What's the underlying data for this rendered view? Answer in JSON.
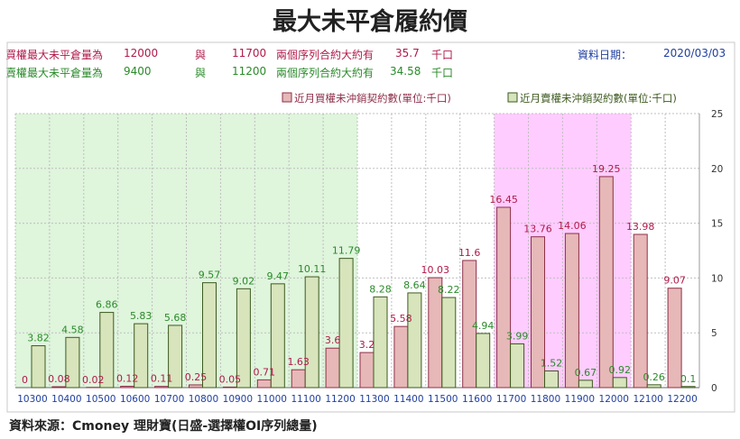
{
  "title": "最大未平倉履約價",
  "info": {
    "call_label": "買權最大未平倉量為",
    "call_val1": "12000",
    "and1": "與",
    "call_val2": "11700",
    "call_mid": "兩個序列合約大約有",
    "call_amount": "35.7",
    "call_unit": "千口",
    "put_label": "賣權最大未平倉量為",
    "put_val1": "9400",
    "and2": "與",
    "put_val2": "11200",
    "put_mid": "兩個序列合約大約有",
    "put_amount": "34.58",
    "put_unit": "千口",
    "date_label": "資料日期：",
    "date_value": "2020/03/03"
  },
  "colors": {
    "call_bar": "#e6b8b7",
    "call_edge": "#8e2f4a",
    "put_bar": "#d7e4bc",
    "put_edge": "#3d5a1f",
    "green_band": "#dff5dc",
    "pink_band": "#ffccff",
    "call_text": "#b01a4a",
    "put_text": "#2a8a2a"
  },
  "source": "資料來源：Cmoney 理財寶(日盛-選擇權OI序列總量)",
  "chart_data": {
    "type": "bar",
    "title": "最大未平倉履約價",
    "categories": [
      "10300",
      "10400",
      "10500",
      "10600",
      "10700",
      "10800",
      "10900",
      "11000",
      "11100",
      "11200",
      "11300",
      "11400",
      "11500",
      "11600",
      "11700",
      "11800",
      "11900",
      "12000",
      "12100",
      "12200"
    ],
    "series": [
      {
        "name": "近月買權未沖銷契約數(單位:千口)",
        "values": [
          0,
          0.08,
          0.02,
          0.12,
          0.11,
          0.25,
          0.05,
          0.71,
          1.63,
          3.6,
          3.2,
          5.58,
          10.03,
          11.6,
          16.45,
          13.76,
          14.06,
          19.25,
          13.98,
          9.07
        ]
      },
      {
        "name": "近月賣權未沖銷契約數(單位:千口)",
        "values": [
          3.82,
          4.58,
          6.86,
          5.83,
          5.68,
          9.57,
          9.02,
          9.47,
          10.11,
          11.79,
          8.28,
          8.64,
          8.22,
          4.94,
          3.99,
          1.52,
          0.67,
          0.92,
          0.26,
          0.1
        ]
      }
    ],
    "y_ticks": [
      "0",
      "5",
      "10",
      "15",
      "20",
      "25"
    ],
    "ylim": [
      0,
      25
    ],
    "y_axis_side": "right",
    "legend_position": "top-right",
    "highlight_bands": [
      {
        "from": "10300",
        "to": "11200",
        "meaning": "put range"
      },
      {
        "from": "11700",
        "to": "12000",
        "meaning": "call range"
      }
    ]
  }
}
